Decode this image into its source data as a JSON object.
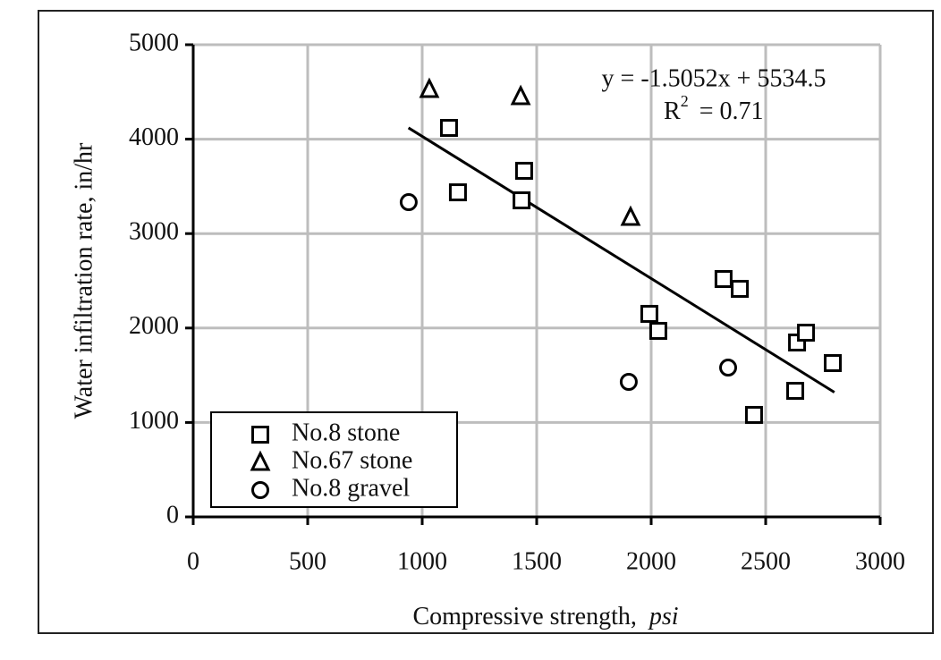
{
  "chart_data": {
    "type": "scatter",
    "xlabel": "Compressive strength,",
    "xlabel_unit": "psi",
    "ylabel": "Water infiltration rate, in/hr",
    "xlim": [
      0,
      3000
    ],
    "ylim": [
      0,
      5000
    ],
    "xticks": [
      0,
      500,
      1000,
      1500,
      2000,
      2500,
      3000
    ],
    "yticks": [
      0,
      1000,
      2000,
      3000,
      4000,
      5000
    ],
    "grid": true,
    "legend": "lower left",
    "series": [
      {
        "name": "No.8 stone",
        "marker": "square",
        "color": "#000000",
        "x": [
          1117,
          1156,
          1434,
          1445,
          1992,
          2031,
          2316,
          2387,
          2637,
          2676,
          2629,
          2449,
          2793
        ],
        "y": [
          4119,
          3437,
          3352,
          3665,
          2150,
          1970,
          2519,
          2415,
          1847,
          1951,
          1335,
          1080,
          1629
        ]
      },
      {
        "name": "No.67 stone",
        "marker": "triangle",
        "color": "#000000",
        "x": [
          1031,
          1430,
          1910
        ],
        "y": [
          4527,
          4451,
          3172
        ]
      },
      {
        "name": "No.8 gravel",
        "marker": "circle",
        "color": "#000000",
        "x": [
          941,
          1902,
          2336
        ],
        "y": [
          3333,
          1430,
          1581
        ]
      }
    ],
    "trendline": {
      "x": [
        940,
        2800
      ],
      "y": [
        4120,
        1320
      ]
    },
    "equation": "y = -1.5052x + 5534.5",
    "r_squared": {
      "base": "R",
      "sup": "2",
      "rest": "= 0.71"
    }
  }
}
